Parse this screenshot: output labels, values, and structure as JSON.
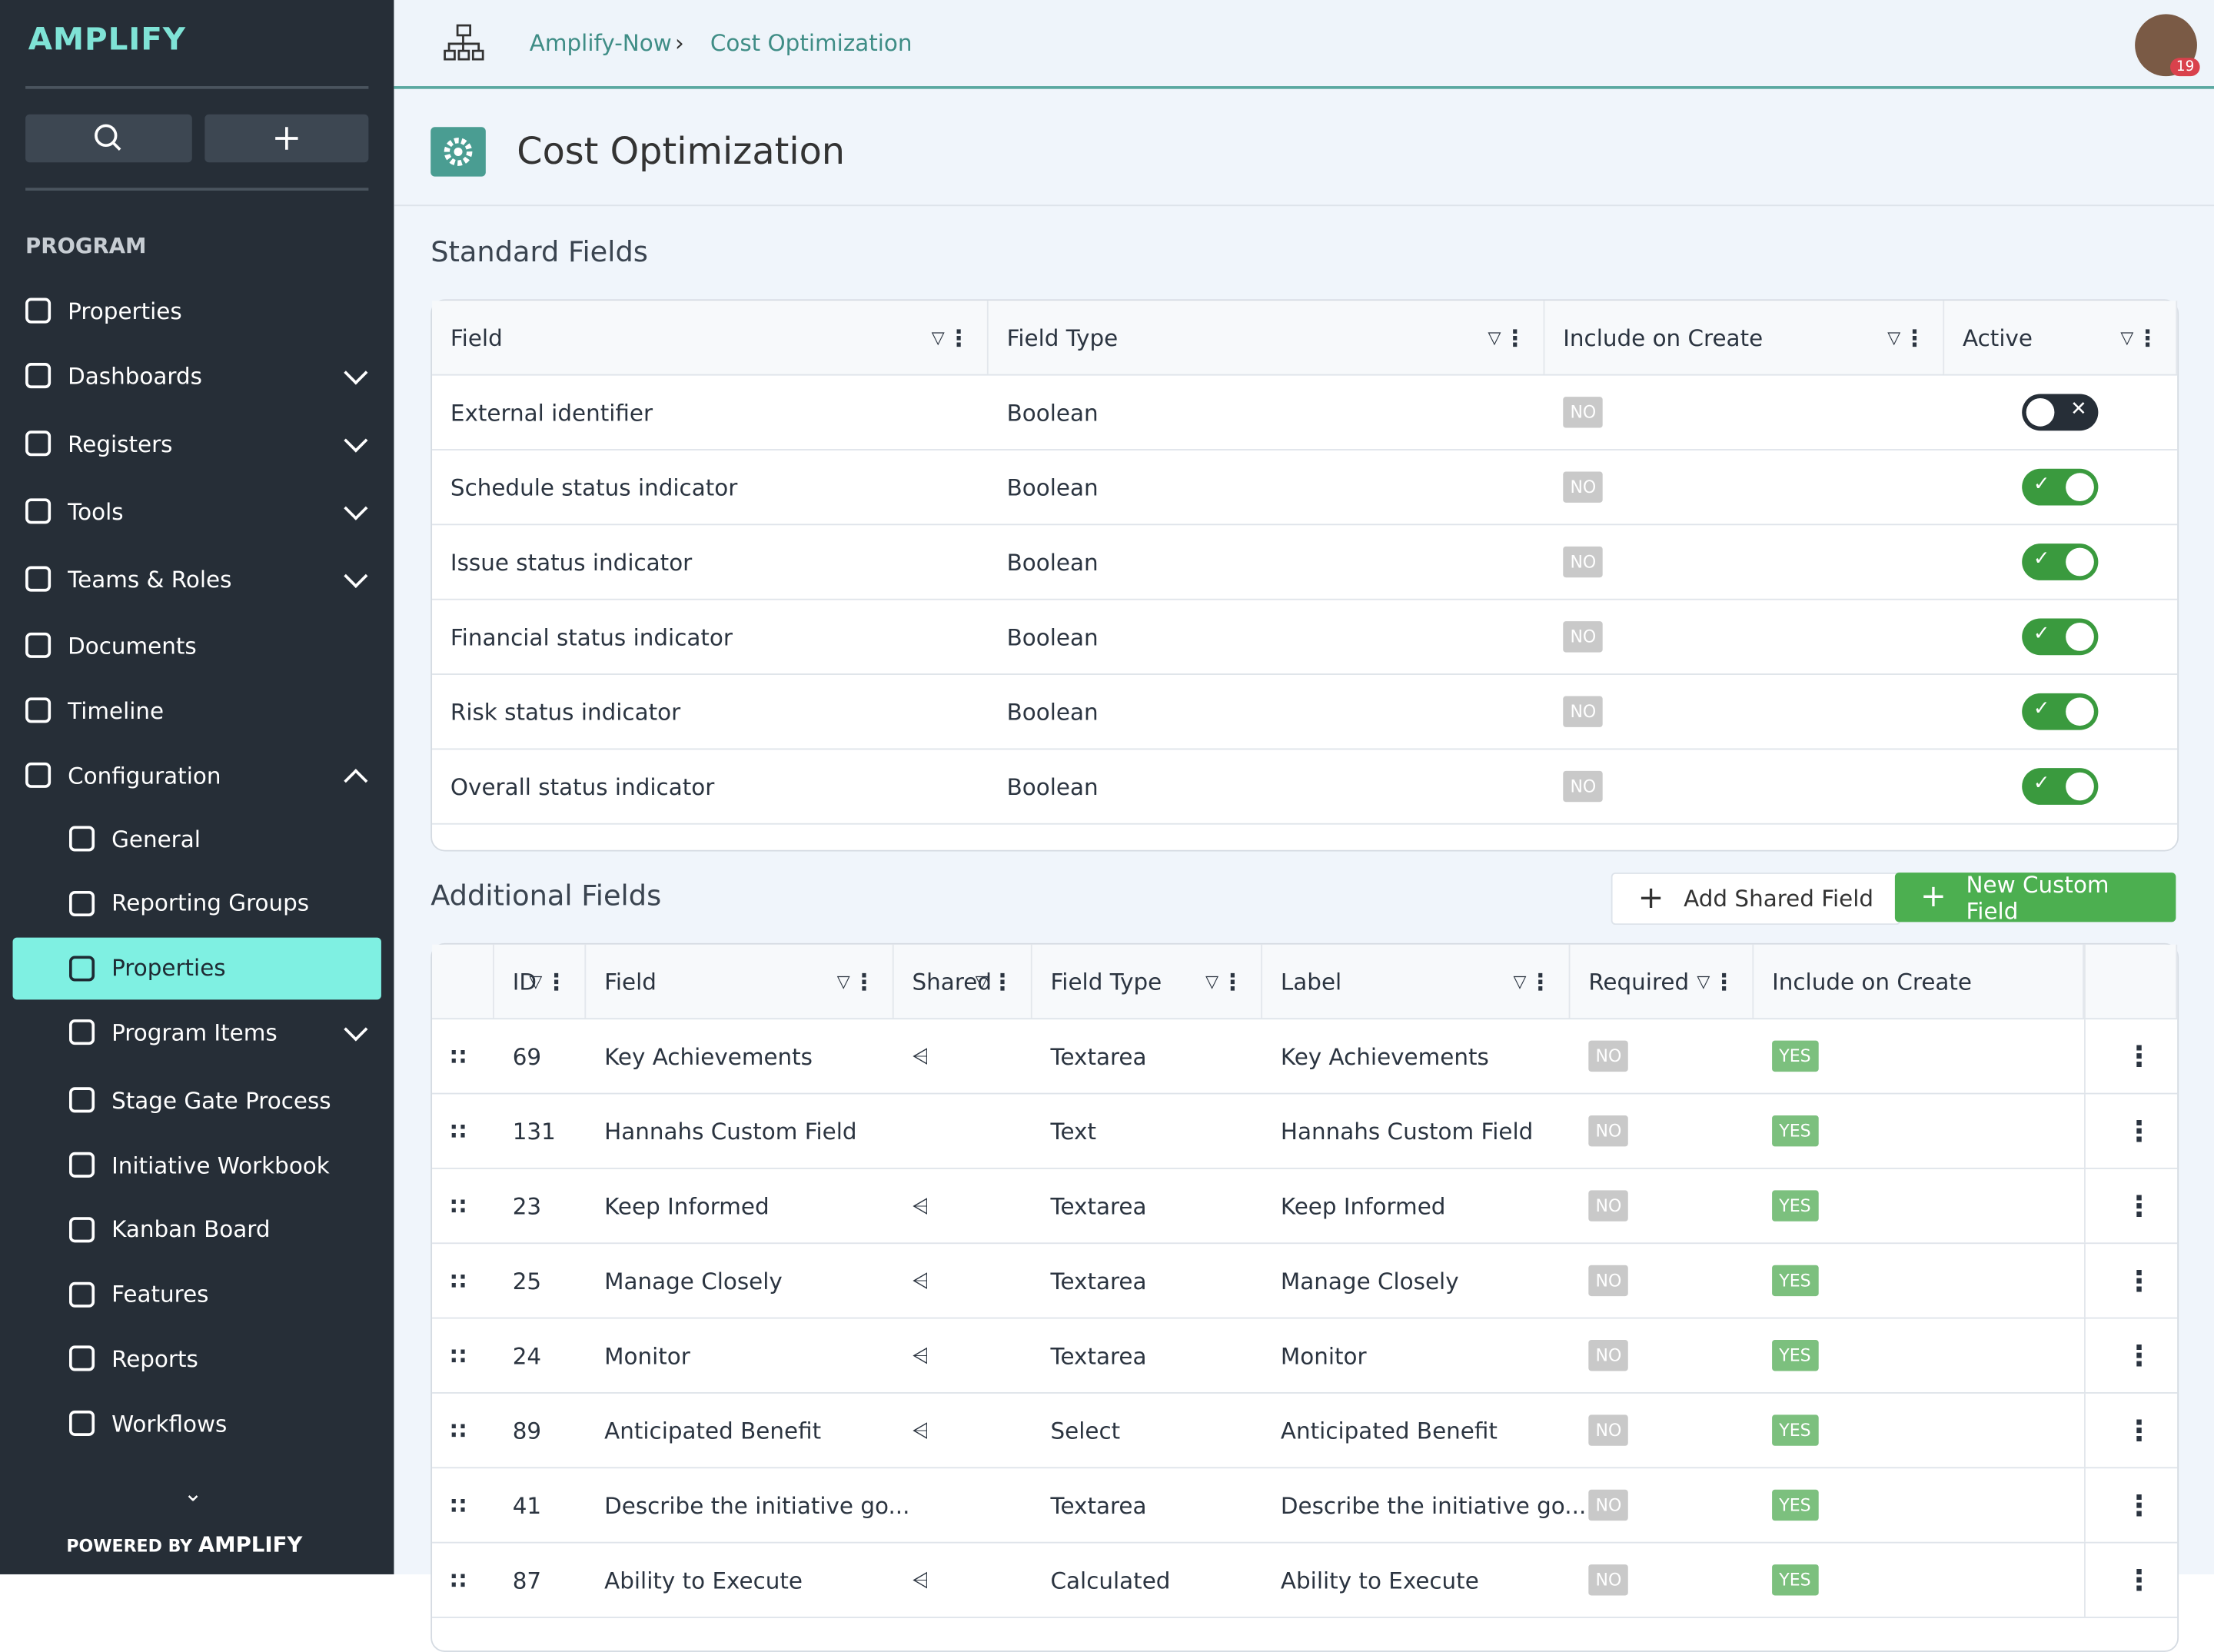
{
  "sidebar": {
    "logo": "AMPLIFY",
    "section": "PROGRAM",
    "nav": [
      {
        "label": "Properties",
        "expandable": false
      },
      {
        "label": "Dashboards",
        "expandable": true
      },
      {
        "label": "Registers",
        "expandable": true
      },
      {
        "label": "Tools",
        "expandable": true
      },
      {
        "label": "Teams & Roles",
        "expandable": true
      },
      {
        "label": "Documents",
        "expandable": false
      },
      {
        "label": "Timeline",
        "expandable": false
      },
      {
        "label": "Configuration",
        "expandable": true,
        "expanded": true
      }
    ],
    "sub": [
      {
        "label": "General",
        "expandable": false
      },
      {
        "label": "Reporting Groups",
        "expandable": false
      },
      {
        "label": "Properties",
        "expandable": false,
        "active": true
      },
      {
        "label": "Program Items",
        "expandable": true
      },
      {
        "label": "Stage Gate Process",
        "expandable": false
      },
      {
        "label": "Initiative Workbook",
        "expandable": false
      },
      {
        "label": "Kanban Board",
        "expandable": false
      },
      {
        "label": "Features",
        "expandable": false
      },
      {
        "label": "Reports",
        "expandable": false
      },
      {
        "label": "Workflows",
        "expandable": false
      }
    ],
    "footer_prefix": "POWERED BY",
    "footer_logo": "AMPLIFY"
  },
  "header": {
    "breadcrumb": [
      "Amplify-Now",
      "Cost Optimization"
    ],
    "notifications": 19
  },
  "page": {
    "title": "Cost Optimization"
  },
  "standard": {
    "title": "Standard Fields",
    "columns": [
      "Field",
      "Field Type",
      "Include on Create",
      "Active"
    ],
    "rows": [
      {
        "field": "External identifier",
        "type": "Boolean",
        "include": "NO",
        "active": false
      },
      {
        "field": "Schedule status indicator",
        "type": "Boolean",
        "include": "NO",
        "active": true
      },
      {
        "field": "Issue status indicator",
        "type": "Boolean",
        "include": "NO",
        "active": true
      },
      {
        "field": "Financial status indicator",
        "type": "Boolean",
        "include": "NO",
        "active": true
      },
      {
        "field": "Risk status indicator",
        "type": "Boolean",
        "include": "NO",
        "active": true
      },
      {
        "field": "Overall status indicator",
        "type": "Boolean",
        "include": "NO",
        "active": true
      }
    ]
  },
  "additional": {
    "title": "Additional Fields",
    "buttons": [
      "Add Shared Field",
      "New Custom Field"
    ],
    "columns": [
      "ID",
      "Field",
      "Shared",
      "Field Type",
      "Label",
      "Required",
      "Include on Create"
    ],
    "rows": [
      {
        "id": 69,
        "field": "Key Achievements",
        "shared": true,
        "type": "Textarea",
        "label": "Key Achievements",
        "required": "NO",
        "include": "YES"
      },
      {
        "id": 131,
        "field": "Hannahs Custom Field",
        "shared": false,
        "type": "Text",
        "label": "Hannahs Custom Field",
        "required": "NO",
        "include": "YES"
      },
      {
        "id": 23,
        "field": "Keep Informed",
        "shared": true,
        "type": "Textarea",
        "label": "Keep Informed",
        "required": "NO",
        "include": "YES"
      },
      {
        "id": 25,
        "field": "Manage Closely",
        "shared": true,
        "type": "Textarea",
        "label": "Manage Closely",
        "required": "NO",
        "include": "YES"
      },
      {
        "id": 24,
        "field": "Monitor",
        "shared": true,
        "type": "Textarea",
        "label": "Monitor",
        "required": "NO",
        "include": "YES"
      },
      {
        "id": 89,
        "field": "Anticipated Benefit",
        "shared": true,
        "type": "Select",
        "label": "Anticipated Benefit",
        "required": "NO",
        "include": "YES"
      },
      {
        "id": 41,
        "field": "Describe the initiative go...",
        "shared": false,
        "type": "Textarea",
        "label": "Describe the initiative go...",
        "required": "NO",
        "include": "YES"
      },
      {
        "id": 87,
        "field": "Ability to Execute",
        "shared": true,
        "type": "Calculated",
        "label": "Ability to Execute",
        "required": "NO",
        "include": "YES"
      }
    ]
  }
}
